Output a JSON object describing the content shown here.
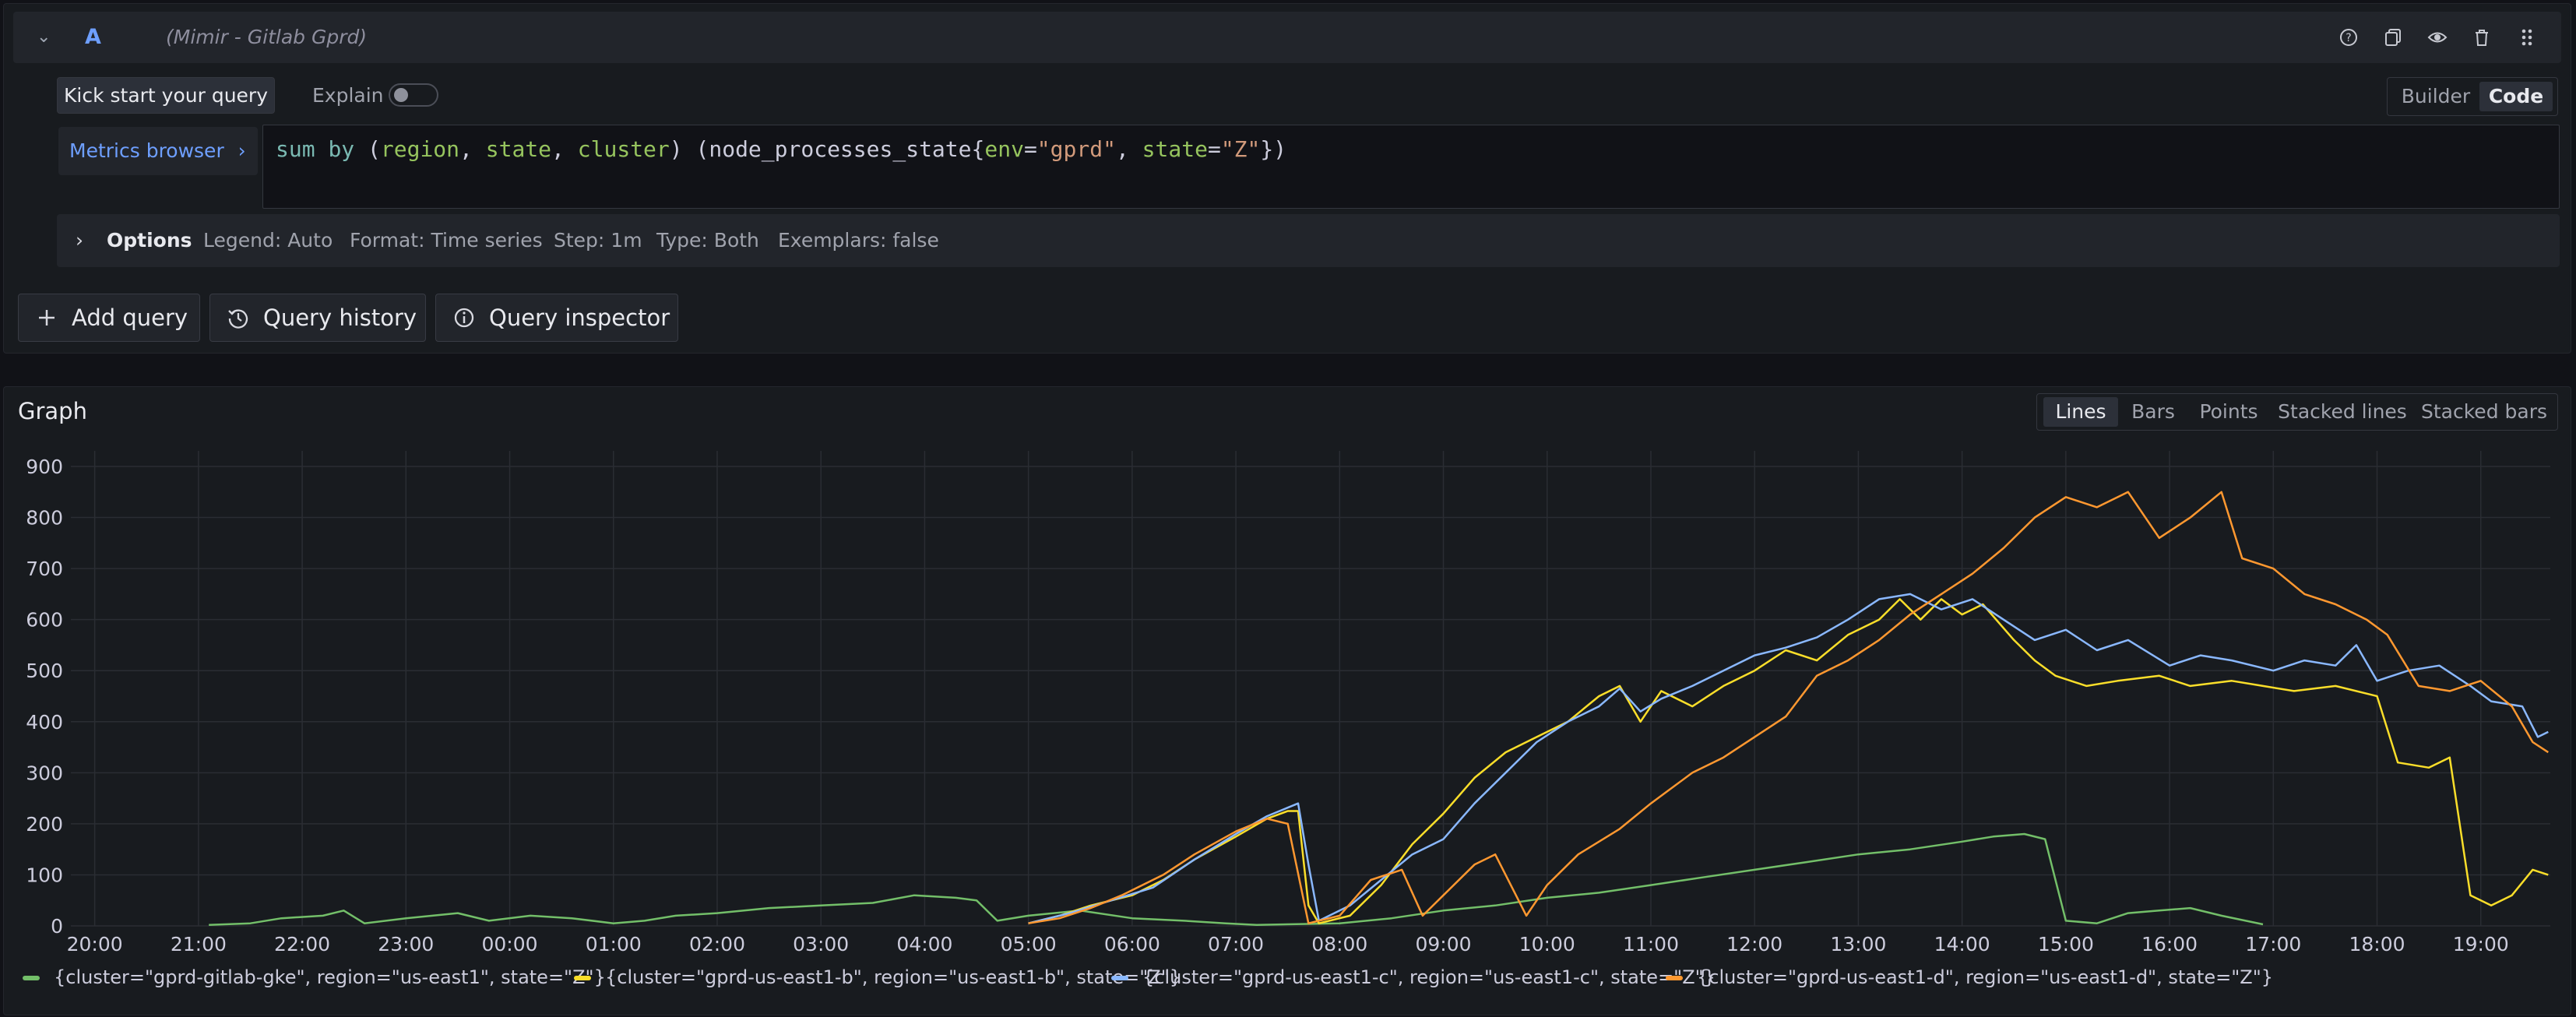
{
  "query": {
    "ref_id": "A",
    "datasource": "(Mimir - Gitlab Gprd)",
    "kickstart_label": "Kick start your query",
    "explain_label": "Explain",
    "explain_on": false,
    "mode_builder": "Builder",
    "mode_code": "Code",
    "active_mode": "Code",
    "metrics_browser_label": "Metrics browser",
    "metrics_browser_chevron": "›",
    "code_tokens": [
      {
        "t": "sum",
        "c": "tk-kw"
      },
      {
        "t": " ",
        "c": ""
      },
      {
        "t": "by",
        "c": "tk-kw"
      },
      {
        "t": " (",
        "c": ""
      },
      {
        "t": "region",
        "c": "tk-lbl"
      },
      {
        "t": ", ",
        "c": ""
      },
      {
        "t": "state",
        "c": "tk-lbl"
      },
      {
        "t": ", ",
        "c": ""
      },
      {
        "t": "cluster",
        "c": "tk-lbl"
      },
      {
        "t": ") (node_processes_state{",
        "c": ""
      },
      {
        "t": "env",
        "c": "tk-lbl"
      },
      {
        "t": "=",
        "c": ""
      },
      {
        "t": "\"gprd\"",
        "c": "tk-str"
      },
      {
        "t": ", ",
        "c": ""
      },
      {
        "t": "state",
        "c": "tk-lbl"
      },
      {
        "t": "=",
        "c": ""
      },
      {
        "t": "\"Z\"",
        "c": "tk-str"
      },
      {
        "t": "})",
        "c": ""
      }
    ],
    "options": {
      "label": "Options",
      "legend": "Legend: Auto",
      "format": "Format: Time series",
      "step": "Step: 1m",
      "type": "Type: Both",
      "exemplars": "Exemplars: false"
    },
    "header_icons": [
      "help-icon",
      "duplicate-icon",
      "eye-icon",
      "trash-icon",
      "drag-handle-icon"
    ]
  },
  "actions": {
    "add_query": "Add query",
    "query_history": "Query history",
    "query_inspector": "Query inspector"
  },
  "graph": {
    "title": "Graph",
    "viz_options": [
      "Lines",
      "Bars",
      "Points",
      "Stacked lines",
      "Stacked bars"
    ],
    "active_viz": "Lines"
  },
  "chart_data": {
    "type": "line",
    "title": "",
    "xlabel": "",
    "ylabel": "",
    "ylim": [
      0,
      900
    ],
    "yticks": [
      0,
      100,
      200,
      300,
      400,
      500,
      600,
      700,
      800,
      900
    ],
    "xticks": [
      "20:00",
      "21:00",
      "22:00",
      "23:00",
      "00:00",
      "01:00",
      "02:00",
      "03:00",
      "04:00",
      "05:00",
      "06:00",
      "07:00",
      "08:00",
      "09:00",
      "10:00",
      "11:00",
      "12:00",
      "13:00",
      "14:00",
      "15:00",
      "16:00",
      "17:00",
      "18:00",
      "19:00"
    ],
    "x_range_hours": [
      19.77,
      43.67
    ],
    "grid": true,
    "legend_position": "bottom",
    "series": [
      {
        "name": "{cluster=\"gprd-gitlab-gke\", region=\"us-east1\", state=\"Z\"}",
        "color": "#73bf69",
        "points": [
          [
            21.1,
            2
          ],
          [
            21.5,
            5
          ],
          [
            21.8,
            15
          ],
          [
            22.2,
            20
          ],
          [
            22.4,
            30
          ],
          [
            22.6,
            5
          ],
          [
            23.0,
            15
          ],
          [
            23.5,
            25
          ],
          [
            23.8,
            10
          ],
          [
            24.2,
            20
          ],
          [
            24.6,
            15
          ],
          [
            25.0,
            5
          ],
          [
            25.3,
            10
          ],
          [
            25.6,
            20
          ],
          [
            26.0,
            25
          ],
          [
            26.5,
            35
          ],
          [
            27.0,
            40
          ],
          [
            27.5,
            45
          ],
          [
            27.9,
            60
          ],
          [
            28.3,
            55
          ],
          [
            28.5,
            50
          ],
          [
            28.7,
            10
          ],
          [
            29.0,
            20
          ],
          [
            29.5,
            30
          ],
          [
            30.0,
            15
          ],
          [
            30.5,
            10
          ],
          [
            30.9,
            5
          ],
          [
            31.2,
            2
          ],
          [
            32.0,
            5
          ],
          [
            32.5,
            15
          ],
          [
            33.0,
            30
          ],
          [
            33.5,
            40
          ],
          [
            34.0,
            55
          ],
          [
            34.5,
            65
          ],
          [
            35.0,
            80
          ],
          [
            35.5,
            95
          ],
          [
            36.0,
            110
          ],
          [
            36.5,
            125
          ],
          [
            37.0,
            140
          ],
          [
            37.5,
            150
          ],
          [
            38.0,
            165
          ],
          [
            38.3,
            175
          ],
          [
            38.6,
            180
          ],
          [
            38.8,
            170
          ],
          [
            39.0,
            10
          ],
          [
            39.3,
            5
          ],
          [
            39.6,
            25
          ],
          [
            39.9,
            30
          ],
          [
            40.2,
            35
          ],
          [
            40.5,
            20
          ],
          [
            40.9,
            3
          ]
        ]
      },
      {
        "name": "{cluster=\"gprd-us-east1-b\", region=\"us-east1-b\", state=\"Z\"}",
        "color": "#fade2a",
        "points": [
          [
            29.0,
            5
          ],
          [
            29.3,
            20
          ],
          [
            29.6,
            40
          ],
          [
            30.0,
            60
          ],
          [
            30.3,
            90
          ],
          [
            30.6,
            130
          ],
          [
            31.0,
            175
          ],
          [
            31.3,
            210
          ],
          [
            31.5,
            225
          ],
          [
            31.6,
            225
          ],
          [
            31.7,
            40
          ],
          [
            31.8,
            5
          ],
          [
            32.1,
            20
          ],
          [
            32.4,
            80
          ],
          [
            32.7,
            160
          ],
          [
            33.0,
            220
          ],
          [
            33.3,
            290
          ],
          [
            33.6,
            340
          ],
          [
            33.9,
            370
          ],
          [
            34.2,
            400
          ],
          [
            34.5,
            450
          ],
          [
            34.7,
            470
          ],
          [
            34.9,
            400
          ],
          [
            35.1,
            460
          ],
          [
            35.4,
            430
          ],
          [
            35.7,
            470
          ],
          [
            36.0,
            500
          ],
          [
            36.3,
            540
          ],
          [
            36.6,
            520
          ],
          [
            36.9,
            570
          ],
          [
            37.2,
            600
          ],
          [
            37.4,
            640
          ],
          [
            37.6,
            600
          ],
          [
            37.8,
            640
          ],
          [
            38.0,
            610
          ],
          [
            38.2,
            630
          ],
          [
            38.5,
            560
          ],
          [
            38.7,
            520
          ],
          [
            38.9,
            490
          ],
          [
            39.2,
            470
          ],
          [
            39.5,
            480
          ],
          [
            39.9,
            490
          ],
          [
            40.2,
            470
          ],
          [
            40.6,
            480
          ],
          [
            40.9,
            470
          ],
          [
            41.2,
            460
          ],
          [
            41.6,
            470
          ],
          [
            42.0,
            450
          ],
          [
            42.2,
            320
          ],
          [
            42.5,
            310
          ],
          [
            42.7,
            330
          ],
          [
            42.9,
            60
          ],
          [
            43.1,
            40
          ],
          [
            43.3,
            60
          ],
          [
            43.5,
            110
          ],
          [
            43.65,
            100
          ]
        ]
      },
      {
        "name": "{cluster=\"gprd-us-east1-c\", region=\"us-east1-c\", state=\"Z\"}",
        "color": "#8ab8ff",
        "points": [
          [
            29.0,
            5
          ],
          [
            29.4,
            25
          ],
          [
            29.8,
            50
          ],
          [
            30.2,
            75
          ],
          [
            30.6,
            130
          ],
          [
            31.0,
            180
          ],
          [
            31.3,
            215
          ],
          [
            31.6,
            240
          ],
          [
            31.7,
            120
          ],
          [
            31.8,
            10
          ],
          [
            32.1,
            40
          ],
          [
            32.4,
            90
          ],
          [
            32.7,
            140
          ],
          [
            33.0,
            170
          ],
          [
            33.3,
            240
          ],
          [
            33.6,
            300
          ],
          [
            33.9,
            360
          ],
          [
            34.2,
            400
          ],
          [
            34.5,
            430
          ],
          [
            34.7,
            465
          ],
          [
            34.9,
            420
          ],
          [
            35.1,
            445
          ],
          [
            35.4,
            470
          ],
          [
            35.7,
            500
          ],
          [
            36.0,
            530
          ],
          [
            36.3,
            545
          ],
          [
            36.6,
            565
          ],
          [
            36.9,
            600
          ],
          [
            37.2,
            640
          ],
          [
            37.5,
            650
          ],
          [
            37.8,
            620
          ],
          [
            38.1,
            640
          ],
          [
            38.4,
            600
          ],
          [
            38.7,
            560
          ],
          [
            39.0,
            580
          ],
          [
            39.3,
            540
          ],
          [
            39.6,
            560
          ],
          [
            40.0,
            510
          ],
          [
            40.3,
            530
          ],
          [
            40.6,
            520
          ],
          [
            41.0,
            500
          ],
          [
            41.3,
            520
          ],
          [
            41.6,
            510
          ],
          [
            41.8,
            550
          ],
          [
            42.0,
            480
          ],
          [
            42.3,
            500
          ],
          [
            42.6,
            510
          ],
          [
            42.9,
            470
          ],
          [
            43.1,
            440
          ],
          [
            43.4,
            430
          ],
          [
            43.55,
            370
          ],
          [
            43.65,
            380
          ]
        ]
      },
      {
        "name": "{cluster=\"gprd-us-east1-d\", region=\"us-east1-d\", state=\"Z\"}",
        "color": "#ff9830",
        "points": [
          [
            29.0,
            5
          ],
          [
            29.3,
            15
          ],
          [
            29.6,
            35
          ],
          [
            29.9,
            60
          ],
          [
            30.3,
            100
          ],
          [
            30.6,
            140
          ],
          [
            31.0,
            185
          ],
          [
            31.3,
            210
          ],
          [
            31.5,
            200
          ],
          [
            31.7,
            5
          ],
          [
            32.0,
            20
          ],
          [
            32.3,
            90
          ],
          [
            32.6,
            110
          ],
          [
            32.8,
            20
          ],
          [
            33.0,
            60
          ],
          [
            33.3,
            120
          ],
          [
            33.5,
            140
          ],
          [
            33.8,
            20
          ],
          [
            34.0,
            80
          ],
          [
            34.3,
            140
          ],
          [
            34.7,
            190
          ],
          [
            35.0,
            240
          ],
          [
            35.4,
            300
          ],
          [
            35.7,
            330
          ],
          [
            36.0,
            370
          ],
          [
            36.3,
            410
          ],
          [
            36.6,
            490
          ],
          [
            36.9,
            520
          ],
          [
            37.2,
            560
          ],
          [
            37.5,
            610
          ],
          [
            37.8,
            650
          ],
          [
            38.1,
            690
          ],
          [
            38.4,
            740
          ],
          [
            38.7,
            800
          ],
          [
            39.0,
            840
          ],
          [
            39.3,
            820
          ],
          [
            39.6,
            850
          ],
          [
            39.9,
            760
          ],
          [
            40.2,
            800
          ],
          [
            40.5,
            850
          ],
          [
            40.7,
            720
          ],
          [
            41.0,
            700
          ],
          [
            41.3,
            650
          ],
          [
            41.6,
            630
          ],
          [
            41.9,
            600
          ],
          [
            42.1,
            570
          ],
          [
            42.4,
            470
          ],
          [
            42.7,
            460
          ],
          [
            43.0,
            480
          ],
          [
            43.3,
            430
          ],
          [
            43.5,
            360
          ],
          [
            43.65,
            340
          ]
        ]
      }
    ]
  }
}
